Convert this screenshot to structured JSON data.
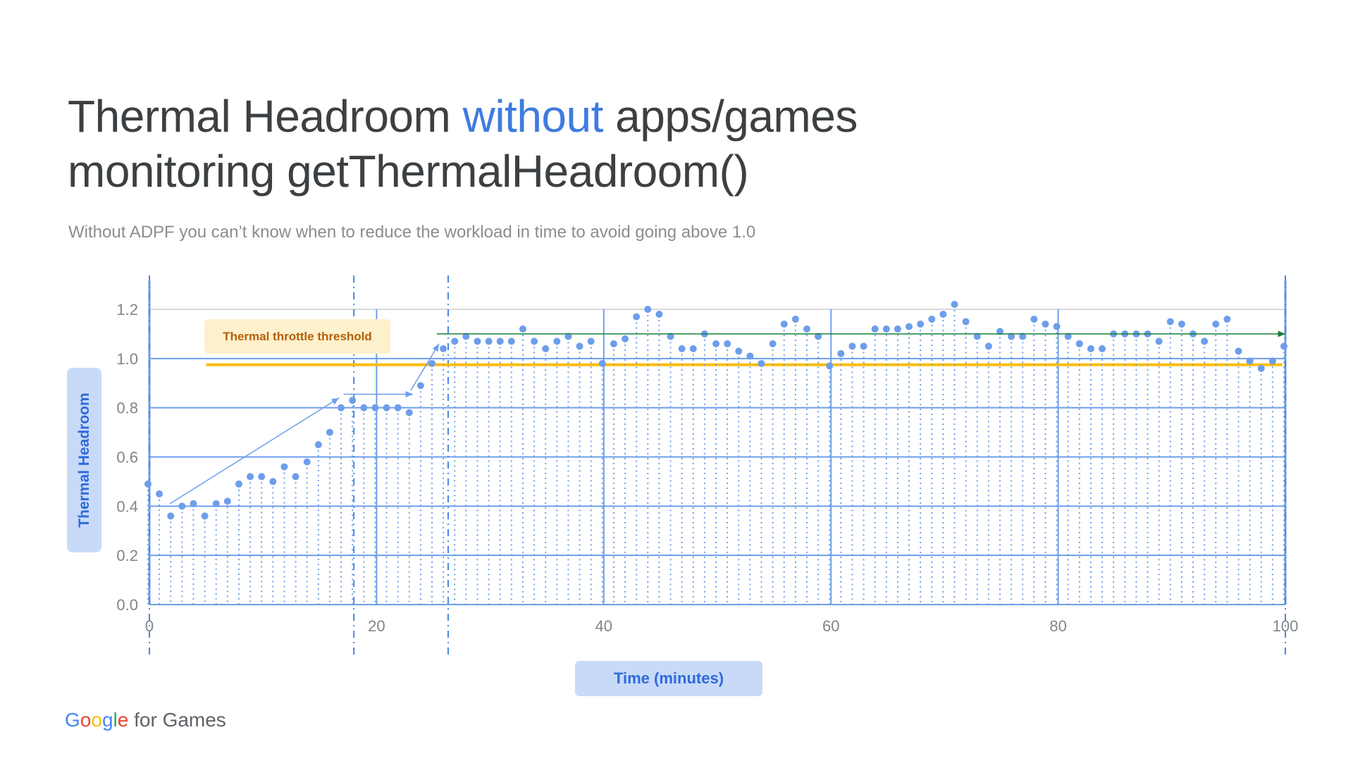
{
  "header": {
    "title_part1": "Thermal Headroom ",
    "title_highlight": "without",
    "title_part2": " apps/games",
    "title_line2": "monitoring getThermalHeadroom()",
    "subtitle": "Without ADPF you can’t know when to reduce the workload in time to avoid going above 1.0"
  },
  "chart_data": {
    "type": "scatter",
    "title": "",
    "xlabel": "Time (minutes)",
    "ylabel": "Thermal Headroom",
    "xlim": [
      0,
      100
    ],
    "ylim": [
      0,
      1.2
    ],
    "xticks": [
      "0",
      "20",
      "40",
      "60",
      "80",
      "100"
    ],
    "yticks": [
      "0.0",
      "0.2",
      "0.4",
      "0.6",
      "0.8",
      "1.0",
      "1.2"
    ],
    "grid": true,
    "x": [
      0,
      1,
      2,
      3,
      4,
      5,
      6,
      7,
      8,
      9,
      10,
      11,
      12,
      13,
      14,
      15,
      16,
      17,
      18,
      19,
      20,
      21,
      22,
      23,
      24,
      25,
      26,
      27,
      28,
      29,
      30,
      31,
      32,
      33,
      34,
      35,
      36,
      37,
      38,
      39,
      40,
      41,
      42,
      43,
      44,
      45,
      46,
      47,
      48,
      49,
      50,
      51,
      52,
      53,
      54,
      55,
      56,
      57,
      58,
      59,
      60,
      61,
      62,
      63,
      64,
      65,
      66,
      67,
      68,
      69,
      70,
      71,
      72,
      73,
      74,
      75,
      76,
      77,
      78,
      79,
      80,
      81,
      82,
      83,
      84,
      85,
      86,
      87,
      88,
      89,
      90,
      91,
      92,
      93,
      94,
      95,
      96,
      97,
      98,
      99,
      100
    ],
    "y": [
      0.49,
      0.45,
      0.36,
      0.4,
      0.41,
      0.36,
      0.41,
      0.42,
      0.49,
      0.52,
      0.52,
      0.5,
      0.56,
      0.52,
      0.58,
      0.65,
      0.7,
      0.8,
      0.83,
      0.8,
      0.8,
      0.8,
      0.8,
      0.78,
      0.89,
      0.98,
      1.04,
      1.07,
      1.09,
      1.07,
      1.07,
      1.07,
      1.07,
      1.12,
      1.07,
      1.04,
      1.07,
      1.09,
      1.05,
      1.07,
      0.98,
      1.06,
      1.08,
      1.17,
      1.2,
      1.18,
      1.09,
      1.04,
      1.04,
      1.1,
      1.06,
      1.06,
      1.03,
      1.01,
      0.98,
      1.06,
      1.14,
      1.16,
      1.12,
      1.09,
      0.97,
      1.02,
      1.05,
      1.05,
      1.12,
      1.12,
      1.12,
      1.13,
      1.14,
      1.16,
      1.18,
      1.22,
      1.15,
      1.09,
      1.05,
      1.11,
      1.09,
      1.09,
      1.16,
      1.14,
      1.13,
      1.09,
      1.06,
      1.04,
      1.04,
      1.1,
      1.1,
      1.1,
      1.1,
      1.07,
      1.15,
      1.14,
      1.1,
      1.07,
      1.14,
      1.16,
      1.03,
      0.99,
      0.96,
      0.99,
      1.05
    ],
    "threshold": {
      "label": "Thermal throttle threshold",
      "value": 0.975,
      "color": "#fbbc04"
    },
    "colors": {
      "points": "#6d9eeb",
      "grid": "#6d9eeb",
      "trend_line": "#188038",
      "label_text": "#b45f06"
    }
  },
  "footer": {
    "logo_g": "G",
    "logo_o1": "o",
    "logo_o2": "o",
    "logo_g2": "g",
    "logo_l": "l",
    "logo_e": "e",
    "logo_suffix": " for Games"
  }
}
